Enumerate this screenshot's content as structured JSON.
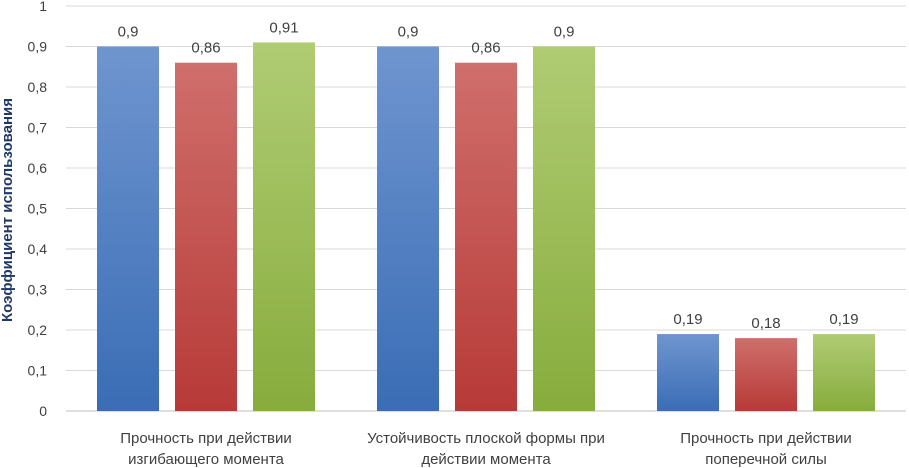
{
  "chart_data": {
    "type": "bar",
    "ylabel": "Коэффициент использования",
    "xlabel": "",
    "ylim": [
      0,
      1
    ],
    "yticks": [
      "0",
      "0,1",
      "0,2",
      "0,3",
      "0,4",
      "0,5",
      "0,6",
      "0,7",
      "0,8",
      "0,9",
      "1"
    ],
    "categories": [
      [
        "Прочность при действии",
        "изгибающего момента"
      ],
      [
        "Устойчивость плоской формы при",
        "действии момента"
      ],
      [
        "Прочность при действии",
        "поперечной силы"
      ]
    ],
    "series": [
      {
        "values": [
          0.9,
          0.9,
          0.19
        ],
        "labels": [
          "0,9",
          "0,9",
          "0,19"
        ],
        "color_top": "#6f95cf",
        "color_bottom": "#3a6db5"
      },
      {
        "values": [
          0.86,
          0.86,
          0.18
        ],
        "labels": [
          "0,86",
          "0,86",
          "0,18"
        ],
        "color_top": "#cf6f6c",
        "color_bottom": "#b73a37"
      },
      {
        "values": [
          0.91,
          0.9,
          0.19
        ],
        "labels": [
          "0,91",
          "0,9",
          "0,19"
        ],
        "color_top": "#b0cc74",
        "color_bottom": "#87ac3c"
      }
    ],
    "grid": true,
    "legend": "none"
  }
}
